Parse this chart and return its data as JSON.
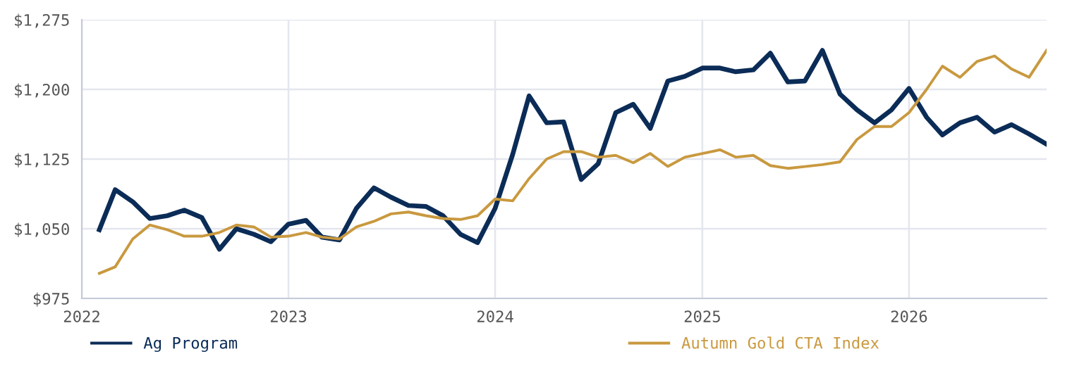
{
  "chart_data": {
    "type": "line",
    "x": [
      "2022-02",
      "2022-03",
      "2022-04",
      "2022-05",
      "2022-06",
      "2022-07",
      "2022-08",
      "2022-09",
      "2022-10",
      "2022-11",
      "2022-12",
      "2023-01",
      "2023-02",
      "2023-03",
      "2023-04",
      "2023-05",
      "2023-06",
      "2023-07",
      "2023-08",
      "2023-09",
      "2023-10",
      "2023-11",
      "2023-12",
      "2024-01",
      "2024-02",
      "2024-03",
      "2024-04",
      "2024-05",
      "2024-06",
      "2024-07",
      "2024-08",
      "2024-09",
      "2024-10",
      "2024-11",
      "2024-12",
      "2025-01",
      "2025-02",
      "2025-03",
      "2025-04",
      "2025-05",
      "2025-06",
      "2025-07",
      "2025-08",
      "2025-09",
      "2025-10",
      "2025-11",
      "2025-12",
      "2026-01",
      "2026-02",
      "2026-03",
      "2026-04",
      "2026-05",
      "2026-06",
      "2026-07",
      "2026-08",
      "2026-09"
    ],
    "series": [
      {
        "name": "Ag Program",
        "color": "#0b2c57",
        "values": [
          1049,
          1092,
          1079,
          1061,
          1064,
          1070,
          1062,
          1028,
          1050,
          1044,
          1036,
          1055,
          1059,
          1041,
          1038,
          1072,
          1094,
          1084,
          1075,
          1074,
          1064,
          1044,
          1035,
          1072,
          1130,
          1193,
          1164,
          1165,
          1103,
          1120,
          1175,
          1184,
          1158,
          1209,
          1214,
          1223,
          1223,
          1219,
          1221,
          1239,
          1208,
          1209,
          1242,
          1195,
          1178,
          1164,
          1178,
          1201,
          1170,
          1151,
          1164,
          1170,
          1154,
          1162,
          1152,
          1141
        ]
      },
      {
        "name": "Autumn Gold CTA Index",
        "color": "#c9993f",
        "values": [
          1002,
          1009,
          1039,
          1054,
          1049,
          1042,
          1042,
          1046,
          1054,
          1052,
          1041,
          1042,
          1046,
          1041,
          1039,
          1052,
          1058,
          1066,
          1068,
          1064,
          1061,
          1060,
          1064,
          1082,
          1080,
          1104,
          1125,
          1133,
          1133,
          1127,
          1129,
          1121,
          1131,
          1117,
          1127,
          1131,
          1135,
          1127,
          1129,
          1118,
          1115,
          1117,
          1119,
          1122,
          1146,
          1160,
          1160,
          1175,
          1200,
          1225,
          1213,
          1230,
          1236,
          1222,
          1213,
          1242
        ]
      }
    ],
    "xlim": [
      "2022-01",
      "2026-09"
    ],
    "xticks": [
      {
        "value": "2022-01",
        "label": "2022"
      },
      {
        "value": "2023-01",
        "label": "2023"
      },
      {
        "value": "2024-01",
        "label": "2024"
      },
      {
        "value": "2025-01",
        "label": "2025"
      },
      {
        "value": "2026-01",
        "label": "2026"
      }
    ],
    "ylim": [
      975,
      1275
    ],
    "yticks": [
      {
        "value": 975,
        "label": "$975"
      },
      {
        "value": 1050,
        "label": "$1,050"
      },
      {
        "value": 1125,
        "label": "$1,125"
      },
      {
        "value": 1200,
        "label": "$1,200"
      },
      {
        "value": 1275,
        "label": "$1,275"
      }
    ],
    "grid": true,
    "legend": "bottom",
    "marker": "none",
    "line_style": "solid"
  }
}
